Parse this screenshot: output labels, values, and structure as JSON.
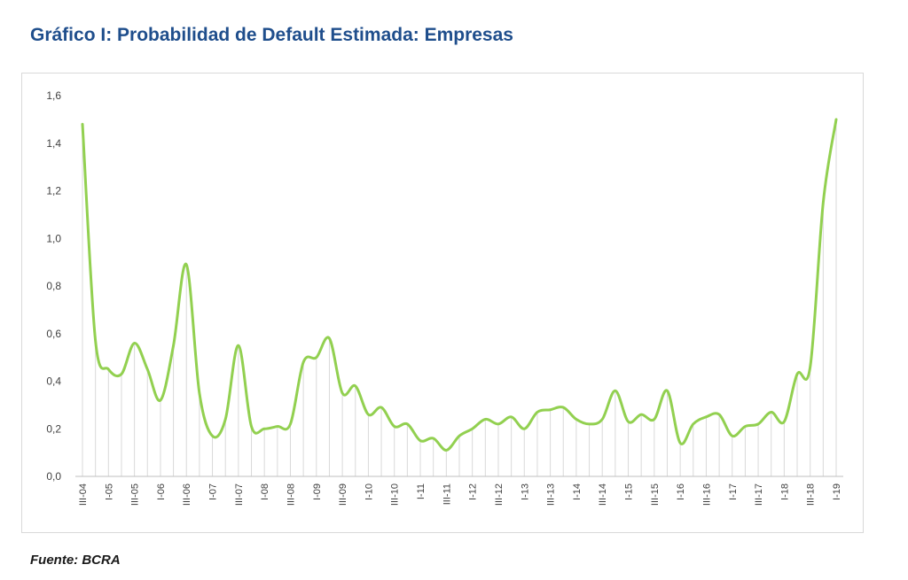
{
  "title": "Gráfico I: Probabilidad de Default Estimada: Empresas",
  "source": "Fuente: BCRA",
  "colors": {
    "line": "#92d050",
    "drop_lines": "#d9d9d9",
    "title": "#1f4e8c"
  },
  "chart_data": {
    "type": "line",
    "title": "Gráfico I: Probabilidad de Default Estimada: Empresas",
    "xlabel": "",
    "ylabel": "",
    "ylim": [
      0,
      1.6
    ],
    "yticks": [
      "0,0",
      "0,2",
      "0,4",
      "0,6",
      "0,8",
      "1,0",
      "1,2",
      "1,4",
      "1,6"
    ],
    "grid": false,
    "legend": "none",
    "drop_lines": true,
    "x": [
      "III-04",
      "IV-04",
      "I-05",
      "II-05",
      "III-05",
      "IV-05",
      "I-06",
      "II-06",
      "III-06",
      "IV-06",
      "I-07",
      "II-07",
      "III-07",
      "IV-07",
      "I-08",
      "II-08",
      "III-08",
      "IV-08",
      "I-09",
      "II-09",
      "III-09",
      "IV-09",
      "I-10",
      "II-10",
      "III-10",
      "IV-10",
      "I-11",
      "II-11",
      "III-11",
      "IV-11",
      "I-12",
      "II-12",
      "III-12",
      "IV-12",
      "I-13",
      "II-13",
      "III-13",
      "IV-13",
      "I-14",
      "II-14",
      "III-14",
      "IV-14",
      "I-15",
      "II-15",
      "III-15",
      "IV-15",
      "I-16",
      "II-16",
      "III-16",
      "IV-16",
      "I-17",
      "II-17",
      "III-17",
      "IV-17",
      "I-18",
      "II-18",
      "III-18",
      "IV-18",
      "I-19"
    ],
    "xtick_labels": [
      "III-04",
      "I-05",
      "III-05",
      "I-06",
      "III-06",
      "I-07",
      "III-07",
      "I-08",
      "III-08",
      "I-09",
      "III-09",
      "I-10",
      "III-10",
      "I-11",
      "III-11",
      "I-12",
      "III-12",
      "I-13",
      "III-13",
      "I-14",
      "III-14",
      "I-15",
      "III-15",
      "I-16",
      "III-16",
      "I-17",
      "III-17",
      "I-18",
      "III-18",
      "I-19"
    ],
    "series": [
      {
        "values": [
          1.48,
          0.57,
          0.45,
          0.43,
          0.56,
          0.45,
          0.32,
          0.55,
          0.89,
          0.35,
          0.17,
          0.24,
          0.55,
          0.21,
          0.2,
          0.21,
          0.22,
          0.48,
          0.5,
          0.58,
          0.35,
          0.38,
          0.26,
          0.29,
          0.21,
          0.22,
          0.15,
          0.16,
          0.11,
          0.17,
          0.2,
          0.24,
          0.22,
          0.25,
          0.2,
          0.27,
          0.28,
          0.29,
          0.24,
          0.22,
          0.24,
          0.36,
          0.23,
          0.26,
          0.24,
          0.36,
          0.14,
          0.22,
          0.25,
          0.26,
          0.17,
          0.21,
          0.22,
          0.27,
          0.23,
          0.43,
          0.46,
          1.15,
          1.5
        ]
      }
    ]
  }
}
